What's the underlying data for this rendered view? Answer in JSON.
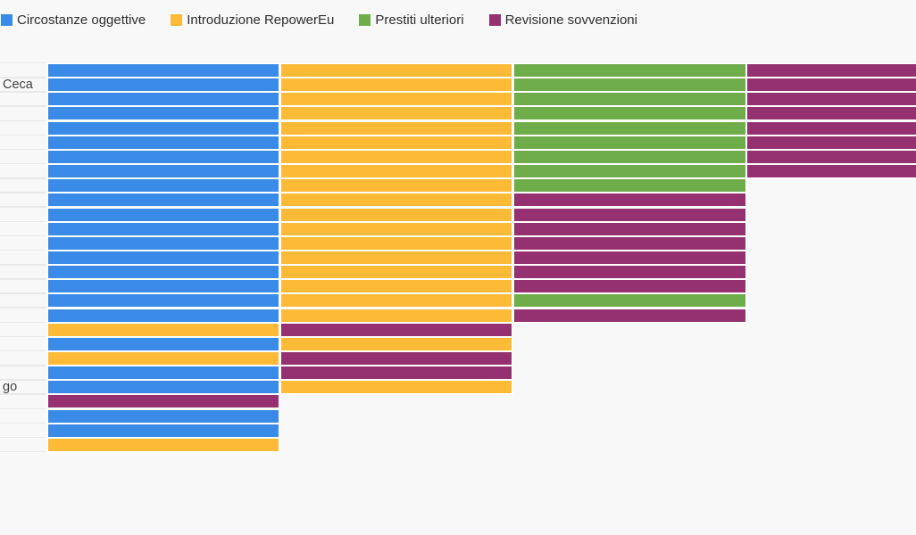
{
  "page": {
    "background_color": "#f8f8f8",
    "grid_color": "#e9e9e9",
    "text_color": "#2d2d2d"
  },
  "legend": {
    "items": [
      {
        "label": "Circostanze oggettive",
        "color": "#3a8ae8"
      },
      {
        "label": "Introduzione RepowerEu",
        "color": "#fcba37"
      },
      {
        "label": "Prestiti ulteriori",
        "color": "#6fad4a"
      },
      {
        "label": "Revisione sovvenzioni",
        "color": "#953170"
      }
    ]
  },
  "chart_data": {
    "type": "bar",
    "orientation": "horizontal",
    "stacked": true,
    "title": "",
    "xlabel": "",
    "ylabel": "",
    "grid": "y-category ticks only (left gutter)",
    "legend_position": "top-left",
    "series": [
      "Circostanze oggettive",
      "Introduzione RepowerEu",
      "Prestiti ulteriori",
      "Revisione sovvenzioni"
    ],
    "unit_value": 1,
    "note": "Each row is a country (27 rows, EU members); y-axis labels are cropped off the left edge of the screenshot except two visible fragments. Each present motivation contributes one equal-width unit segment. Rows 1-8 have a 4th segment clipped by the right edge of the viewport.",
    "rows": [
      {
        "segments": [
          0,
          1,
          2,
          3
        ],
        "clipped_right": true
      },
      {
        "segments": [
          0,
          1,
          2,
          3
        ],
        "clipped_right": true
      },
      {
        "segments": [
          0,
          1,
          2,
          3
        ],
        "clipped_right": true
      },
      {
        "segments": [
          0,
          1,
          2,
          3
        ],
        "clipped_right": true
      },
      {
        "segments": [
          0,
          1,
          2,
          3
        ],
        "clipped_right": true
      },
      {
        "segments": [
          0,
          1,
          2,
          3
        ],
        "clipped_right": true
      },
      {
        "segments": [
          0,
          1,
          2,
          3
        ],
        "clipped_right": true
      },
      {
        "segments": [
          0,
          1,
          2,
          3
        ],
        "clipped_right": true
      },
      {
        "segments": [
          0,
          1,
          2
        ],
        "clipped_right": false
      },
      {
        "segments": [
          0,
          1,
          3
        ],
        "clipped_right": false
      },
      {
        "segments": [
          0,
          1,
          3
        ],
        "clipped_right": false
      },
      {
        "segments": [
          0,
          1,
          3
        ],
        "clipped_right": false
      },
      {
        "segments": [
          0,
          1,
          3
        ],
        "clipped_right": false
      },
      {
        "segments": [
          0,
          1,
          3
        ],
        "clipped_right": false
      },
      {
        "segments": [
          0,
          1,
          3
        ],
        "clipped_right": false
      },
      {
        "segments": [
          0,
          1,
          3
        ],
        "clipped_right": false
      },
      {
        "segments": [
          0,
          1,
          2
        ],
        "clipped_right": false
      },
      {
        "segments": [
          0,
          1,
          3
        ],
        "clipped_right": false
      },
      {
        "segments": [
          1,
          3
        ],
        "clipped_right": false
      },
      {
        "segments": [
          0,
          1
        ],
        "clipped_right": false
      },
      {
        "segments": [
          1,
          3
        ],
        "clipped_right": false
      },
      {
        "segments": [
          0,
          3
        ],
        "clipped_right": false
      },
      {
        "segments": [
          0,
          1
        ],
        "clipped_right": false
      },
      {
        "segments": [
          3
        ],
        "clipped_right": false
      },
      {
        "segments": [
          0
        ],
        "clipped_right": false
      },
      {
        "segments": [
          0
        ],
        "clipped_right": false
      },
      {
        "segments": [
          1
        ],
        "clipped_right": false
      }
    ],
    "visible_y_labels": [
      {
        "row": 1,
        "text": "Ceca"
      },
      {
        "row": 22,
        "text": "go"
      }
    ]
  }
}
